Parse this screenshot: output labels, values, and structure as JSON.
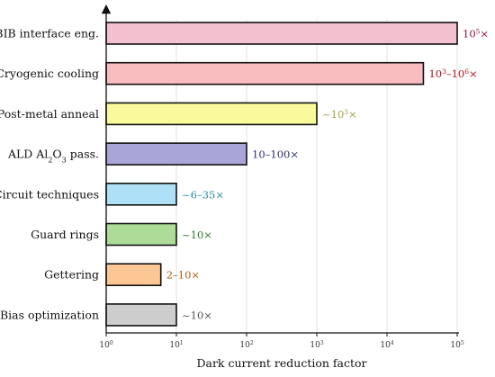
{
  "chart_data": {
    "type": "bar",
    "orientation": "horizontal",
    "xscale": "log",
    "xlim": [
      1,
      100000
    ],
    "grid": true,
    "xlabel": "Dark current reduction factor",
    "xticks": [
      {
        "value": 1,
        "base": "10",
        "exp": "0"
      },
      {
        "value": 10,
        "base": "10",
        "exp": "1"
      },
      {
        "value": 100,
        "base": "10",
        "exp": "2"
      },
      {
        "value": 1000,
        "base": "10",
        "exp": "3"
      },
      {
        "value": 10000,
        "base": "10",
        "exp": "4"
      },
      {
        "value": 100000,
        "base": "10",
        "exp": "5"
      }
    ],
    "bars": [
      {
        "category": "BIB interface eng.",
        "value": 100000,
        "color": "#f2c0cf",
        "label_color": "#8b1538",
        "label_parts": [
          {
            "t": "10"
          },
          {
            "t": "5",
            "sup": true
          },
          {
            "t": "×"
          }
        ]
      },
      {
        "category": "Cryogenic cooling",
        "value": 33000,
        "color": "#f9bcbf",
        "label_color": "#b0141c",
        "label_parts": [
          {
            "t": "10"
          },
          {
            "t": "3",
            "sup": true
          },
          {
            "t": "–10"
          },
          {
            "t": "6",
            "sup": true
          },
          {
            "t": "×"
          }
        ]
      },
      {
        "category": "Post-metal anneal",
        "value": 1000,
        "color": "#fafa9c",
        "label_color": "#a3a14a",
        "label_parts": [
          {
            "t": "~10"
          },
          {
            "t": "3",
            "sup": true
          },
          {
            "t": "×"
          }
        ]
      },
      {
        "category_parts": [
          {
            "t": "ALD Al"
          },
          {
            "t": "2",
            "sub": true
          },
          {
            "t": "O"
          },
          {
            "t": "3",
            "sub": true
          },
          {
            "t": " pass."
          }
        ],
        "value": 100,
        "color": "#aaa5d8",
        "label_color": "#2e2f7a",
        "label_parts": [
          {
            "t": "10–100×"
          }
        ]
      },
      {
        "category": "Circuit techniques",
        "value": 10,
        "color": "#aee0f7",
        "label_color": "#2a8aa8",
        "label_parts": [
          {
            "t": "~6–35×"
          }
        ]
      },
      {
        "category": "Guard rings",
        "value": 10,
        "color": "#addc98",
        "label_color": "#2e7d32",
        "label_parts": [
          {
            "t": "~10×"
          }
        ]
      },
      {
        "category": "Gettering",
        "value": 6,
        "color": "#fcc795",
        "label_color": "#b35a12",
        "label_parts": [
          {
            "t": "2–10×"
          }
        ]
      },
      {
        "category": "Bias optimization",
        "value": 10,
        "color": "#cdcdcd",
        "label_color": "#555555",
        "label_parts": [
          {
            "t": "~10×"
          }
        ]
      }
    ]
  }
}
